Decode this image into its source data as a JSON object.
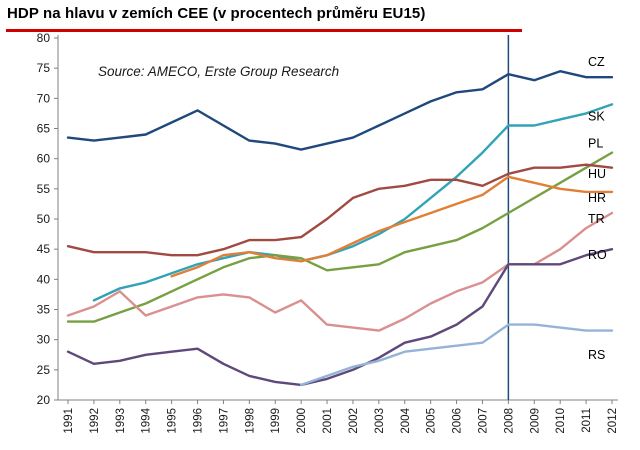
{
  "header": {
    "title": "HDP na hlavu v zemích CEE (v procentech průměru EU15)",
    "underline_color": "#d00000"
  },
  "chart_data": {
    "type": "line",
    "title": "HDP na hlavu v zemích CEE (v procentech průměru EU15)",
    "xlabel": "",
    "ylabel": "",
    "ylim": [
      20,
      80
    ],
    "yticks": [
      20,
      25,
      30,
      35,
      40,
      45,
      50,
      55,
      60,
      65,
      70,
      75,
      80
    ],
    "grid": false,
    "legend_position": "right-inline-labels",
    "x": [
      1991,
      1992,
      1993,
      1994,
      1995,
      1996,
      1997,
      1998,
      1999,
      2000,
      2001,
      2002,
      2003,
      2004,
      2005,
      2006,
      2007,
      2008,
      2009,
      2010,
      2011,
      2012
    ],
    "annotations": {
      "source_note": "Source: AMECO, Erste Group Research",
      "vline_x": 2008,
      "vline_color": "#1F497D"
    },
    "series": [
      {
        "name": "CZ",
        "color": "#1F497D",
        "label_value": 76,
        "values": [
          63.5,
          63,
          63.5,
          64,
          66,
          68,
          65.5,
          63,
          62.5,
          61.5,
          62.5,
          63.5,
          65.5,
          67.5,
          69.5,
          71,
          71.5,
          74,
          73,
          74.5,
          73.5,
          73.5
        ]
      },
      {
        "name": "SK",
        "color": "#31A3B5",
        "label_value": 67,
        "values": [
          null,
          36.5,
          38.5,
          39.5,
          41,
          42.5,
          43.5,
          44.5,
          44,
          43,
          44,
          45.5,
          47.5,
          50,
          53.5,
          57,
          61,
          65.5,
          65.5,
          66.5,
          67.5,
          69
        ]
      },
      {
        "name": "PL",
        "color": "#76A041",
        "label_value": 62.5,
        "values": [
          33,
          33,
          34.5,
          36,
          38,
          40,
          42,
          43.5,
          44,
          43.5,
          41.5,
          42,
          42.5,
          44.5,
          45.5,
          46.5,
          48.5,
          51,
          53.5,
          56,
          58.5,
          61
        ]
      },
      {
        "name": "HU",
        "color": "#A04A42",
        "label_value": 57.5,
        "values": [
          45.5,
          44.5,
          44.5,
          44.5,
          44,
          44,
          45,
          46.5,
          46.5,
          47,
          50,
          53.5,
          55,
          55.5,
          56.5,
          56.5,
          55.5,
          57.5,
          58.5,
          58.5,
          59,
          58.5
        ]
      },
      {
        "name": "HR",
        "color": "#E07F35",
        "label_value": 53.5,
        "values": [
          null,
          null,
          null,
          null,
          40.5,
          42,
          44,
          44.5,
          43.5,
          43,
          44,
          46,
          48,
          49.5,
          51,
          52.5,
          54,
          57,
          56,
          55,
          54.5,
          54.5
        ]
      },
      {
        "name": "TR",
        "color": "#D9908F",
        "label_value": 50,
        "values": [
          34,
          35.5,
          38,
          34,
          35.5,
          37,
          37.5,
          37,
          34.5,
          36.5,
          32.5,
          32,
          31.5,
          33.5,
          36,
          38,
          39.5,
          42.5,
          42.5,
          45,
          48.5,
          51
        ]
      },
      {
        "name": "RO",
        "color": "#5F497A",
        "label_value": 44,
        "values": [
          28,
          26,
          26.5,
          27.5,
          28,
          28.5,
          26,
          24,
          23,
          22.5,
          23.5,
          25,
          27,
          29.5,
          30.5,
          32.5,
          35.5,
          42.5,
          42.5,
          42.5,
          44,
          45
        ]
      },
      {
        "name": "RS",
        "color": "#95B3D7",
        "label_value": 27.5,
        "values": [
          null,
          null,
          null,
          null,
          null,
          null,
          null,
          null,
          null,
          22.5,
          24,
          25.5,
          26.5,
          28,
          28.5,
          29,
          29.5,
          32.5,
          32.5,
          32,
          31.5,
          31.5
        ]
      }
    ]
  }
}
